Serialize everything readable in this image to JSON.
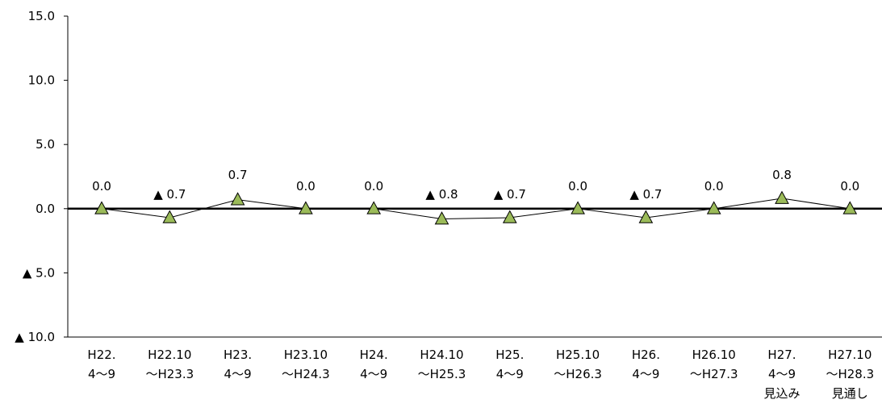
{
  "chart_data": {
    "type": "line",
    "title": "",
    "xlabel": "",
    "ylabel": "",
    "ylim": [
      -10,
      15
    ],
    "yticks": [
      15,
      10,
      5,
      0,
      -5,
      -10
    ],
    "ytick_labels": [
      "15.0",
      "10.0",
      "5.0",
      "0.0",
      "▲ 5.0",
      "▲ 10.0"
    ],
    "categories": [
      [
        "H22.",
        "4～9"
      ],
      [
        "H22.10",
        "～H23.3"
      ],
      [
        "H23.",
        "4～9"
      ],
      [
        "H23.10",
        "～H24.3"
      ],
      [
        "H24.",
        "4～9"
      ],
      [
        "H24.10",
        "～H25.3"
      ],
      [
        "H25.",
        "4～9"
      ],
      [
        "H25.10",
        "～H26.3"
      ],
      [
        "H26.",
        "4～9"
      ],
      [
        "H26.10",
        "～H27.3"
      ],
      [
        "H27.",
        "4～9",
        "見込み"
      ],
      [
        "H27.10",
        "～H28.3",
        "見通し"
      ]
    ],
    "series": [
      {
        "values": [
          0.0,
          -0.7,
          0.7,
          0.0,
          0.0,
          -0.8,
          -0.7,
          0.0,
          -0.7,
          0.0,
          0.8,
          0.0
        ],
        "labels": [
          "0.0",
          "▲ 0.7",
          "0.7",
          "0.0",
          "0.0",
          "▲ 0.8",
          "▲ 0.7",
          "0.0",
          "▲ 0.7",
          "0.0",
          "0.8",
          "0.0"
        ],
        "marker": "triangle",
        "marker_color": "#9BBB59",
        "line_color": "#000000"
      }
    ],
    "grid": false,
    "legend": "none"
  }
}
